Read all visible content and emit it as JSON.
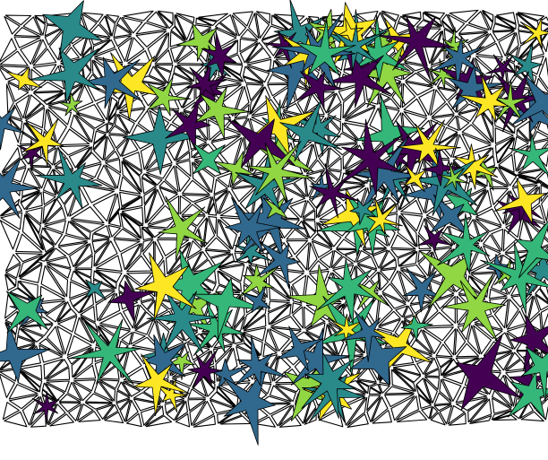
{
  "figure": {
    "kind": "triangulated mesh with colored star-shaped cell clusters",
    "palette": {
      "outline": "#000000",
      "background": "#ffffff",
      "purple": "#440154",
      "blue": "#31688e",
      "teal": "#2a8a8a",
      "green": "#35b779",
      "lime": "#90d743",
      "yellow": "#fde725"
    }
  }
}
